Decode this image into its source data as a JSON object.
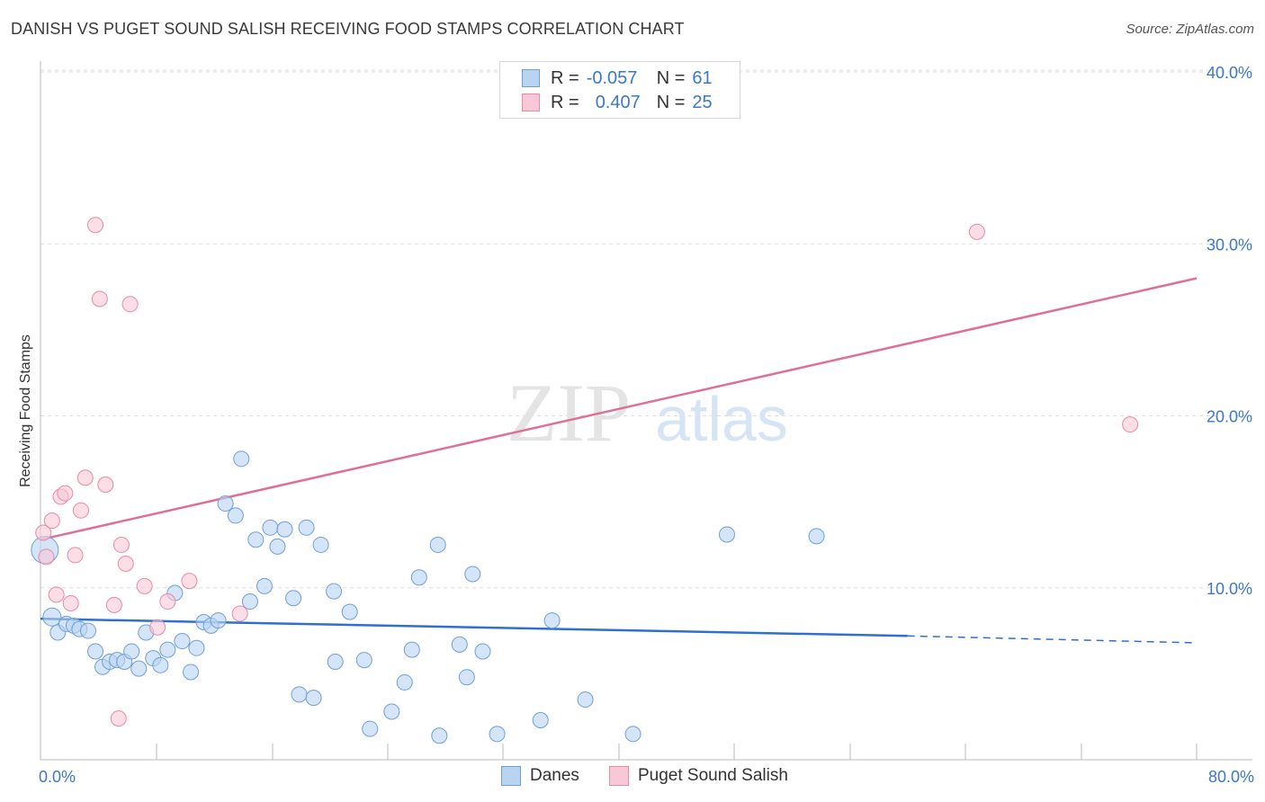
{
  "header": {
    "title": "DANISH VS PUGET SOUND SALISH RECEIVING FOOD STAMPS CORRELATION CHART",
    "source": "Source: ZipAtlas.com"
  },
  "legend": {
    "rows": [
      {
        "r_label": "R =",
        "r_value": "-0.057",
        "n_label": "N =",
        "n_value": "61",
        "color": "#b9d3f3",
        "border": "#6f9fd8"
      },
      {
        "r_label": "R =",
        "r_value": "0.407",
        "n_label": "N =",
        "n_value": "25",
        "color": "#f9c8d6",
        "border": "#e88aa8"
      }
    ],
    "bottom": [
      "Danes",
      "Puget Sound Salish"
    ]
  },
  "watermark": {
    "zip": "ZIP",
    "atlas": "atlas"
  },
  "chart_data": {
    "type": "scatter",
    "title": "DANISH VS PUGET SOUND SALISH RECEIVING FOOD STAMPS CORRELATION CHART",
    "xlabel": "",
    "ylabel": "Receiving Food Stamps",
    "xlim": [
      0,
      80
    ],
    "ylim": [
      0,
      42
    ],
    "x_tick_labels": [
      "0.0%",
      "80.0%"
    ],
    "y_ticks": [
      10,
      20,
      30,
      40
    ],
    "y_tick_labels": [
      "10.0%",
      "20.0%",
      "30.0%",
      "40.0%"
    ],
    "grid": true,
    "colors": {
      "danes": "#6f9fd8",
      "danes_fill": "#b9d3f3",
      "salish": "#e88aa8",
      "salish_fill": "#f9c8d6",
      "danes_line": "#2f6fcf",
      "salish_line": "#e06f97"
    },
    "series": [
      {
        "name": "Danes",
        "r": -0.057,
        "n": 61,
        "trend": {
          "x0": 0,
          "y0": 8.2,
          "x1": 60,
          "y1": 7.2,
          "dash_to_x": 80,
          "dash_to_y": 6.8
        },
        "points": [
          [
            0.3,
            12.2,
            "big"
          ],
          [
            0.8,
            8.3,
            "med"
          ],
          [
            1.2,
            7.4
          ],
          [
            1.8,
            7.9
          ],
          [
            2.3,
            7.8
          ],
          [
            2.7,
            7.6
          ],
          [
            3.3,
            7.5
          ],
          [
            3.8,
            6.3
          ],
          [
            4.3,
            5.4
          ],
          [
            4.8,
            5.7
          ],
          [
            5.3,
            5.8
          ],
          [
            5.8,
            5.7
          ],
          [
            6.3,
            6.3
          ],
          [
            6.8,
            5.3
          ],
          [
            7.3,
            7.4
          ],
          [
            7.8,
            5.9
          ],
          [
            8.3,
            5.5
          ],
          [
            8.8,
            6.4
          ],
          [
            9.3,
            9.7
          ],
          [
            9.8,
            6.9
          ],
          [
            10.4,
            5.1
          ],
          [
            10.8,
            6.5
          ],
          [
            11.3,
            8.0
          ],
          [
            11.8,
            7.8
          ],
          [
            12.3,
            8.1
          ],
          [
            12.8,
            14.9
          ],
          [
            13.5,
            14.2
          ],
          [
            13.9,
            17.5
          ],
          [
            14.5,
            9.2
          ],
          [
            14.9,
            12.8
          ],
          [
            15.5,
            10.1
          ],
          [
            15.9,
            13.5
          ],
          [
            16.4,
            12.4
          ],
          [
            16.9,
            13.4
          ],
          [
            17.5,
            9.4
          ],
          [
            17.9,
            3.8
          ],
          [
            18.4,
            13.5
          ],
          [
            18.9,
            3.6
          ],
          [
            19.4,
            12.5
          ],
          [
            20.3,
            9.8
          ],
          [
            20.4,
            5.7
          ],
          [
            21.4,
            8.6
          ],
          [
            22.4,
            5.8
          ],
          [
            22.8,
            1.8
          ],
          [
            24.3,
            2.8
          ],
          [
            25.2,
            4.5
          ],
          [
            25.7,
            6.4
          ],
          [
            26.2,
            10.6
          ],
          [
            27.5,
            12.5
          ],
          [
            27.6,
            1.4
          ],
          [
            29.0,
            6.7
          ],
          [
            29.5,
            4.8
          ],
          [
            29.9,
            10.8
          ],
          [
            30.6,
            6.3
          ],
          [
            31.6,
            1.5
          ],
          [
            34.6,
            2.3
          ],
          [
            35.4,
            8.1
          ],
          [
            37.7,
            3.5
          ],
          [
            41.0,
            1.5
          ],
          [
            47.5,
            13.1
          ],
          [
            53.7,
            13.0
          ]
        ]
      },
      {
        "name": "Puget Sound Salish",
        "r": 0.407,
        "n": 25,
        "trend": {
          "x0": 0,
          "y0": 12.8,
          "x1": 80,
          "y1": 28.0
        },
        "points": [
          [
            0.2,
            13.2
          ],
          [
            0.4,
            11.8
          ],
          [
            0.8,
            13.9
          ],
          [
            1.1,
            9.6
          ],
          [
            1.4,
            15.3
          ],
          [
            1.7,
            15.5
          ],
          [
            2.1,
            9.1
          ],
          [
            2.4,
            11.9
          ],
          [
            2.8,
            14.5
          ],
          [
            3.1,
            16.4
          ],
          [
            3.8,
            31.1
          ],
          [
            4.1,
            26.8
          ],
          [
            4.5,
            16.0
          ],
          [
            5.1,
            9.0
          ],
          [
            5.4,
            2.4
          ],
          [
            5.6,
            12.5
          ],
          [
            5.9,
            11.4
          ],
          [
            6.2,
            26.5
          ],
          [
            7.2,
            10.1
          ],
          [
            8.1,
            7.7
          ],
          [
            8.8,
            9.2
          ],
          [
            10.3,
            10.4
          ],
          [
            13.8,
            8.5
          ],
          [
            64.8,
            30.7
          ],
          [
            75.4,
            19.5
          ]
        ]
      }
    ]
  }
}
